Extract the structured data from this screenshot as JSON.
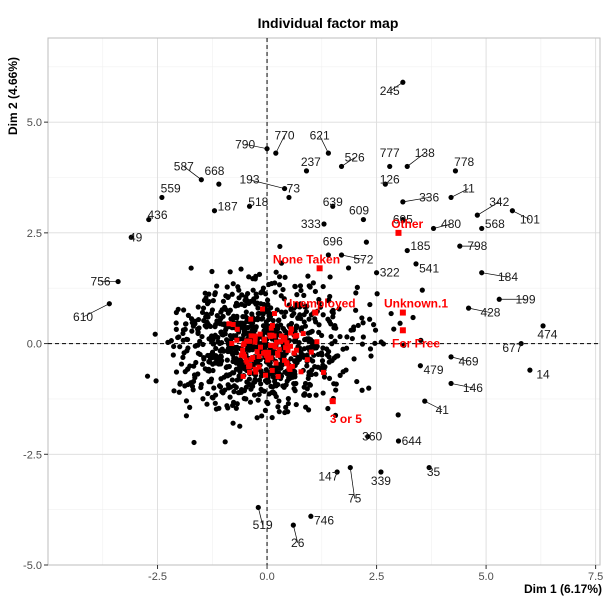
{
  "chart_data": {
    "type": "scatter",
    "title": "Individual factor map",
    "xlabel": "Dim 1 (6.17%)",
    "ylabel": "Dim 2 (4.66%)",
    "xlim": [
      -5.0,
      7.6
    ],
    "ylim": [
      -5.0,
      6.9
    ],
    "xticks": [
      -2.5,
      0.0,
      2.5,
      5.0,
      7.5
    ],
    "xtick_labels": [
      "-2.5",
      "0.0",
      "2.5",
      "5.0",
      "7.5"
    ],
    "yticks": [
      -5.0,
      -2.5,
      0.0,
      2.5,
      5.0
    ],
    "ytick_labels": [
      "-5.0",
      "-2.5",
      "0.0",
      "2.5",
      "5.0"
    ],
    "grid": true,
    "reference_lines": {
      "x": 0,
      "y": 0,
      "style": "dashed"
    },
    "colors": {
      "individuals": "#000000",
      "categories": "#ff0000",
      "grid": "#dcdcdc"
    },
    "labeled_individuals": [
      {
        "label": "245",
        "x": 3.1,
        "y": 5.9,
        "lx": 2.8,
        "ly": 5.7
      },
      {
        "label": "790",
        "x": 0.0,
        "y": 4.4,
        "lx": -0.5,
        "ly": 4.5
      },
      {
        "label": "770",
        "x": 0.2,
        "y": 4.3,
        "lx": 0.4,
        "ly": 4.7
      },
      {
        "label": "621",
        "x": 1.4,
        "y": 4.3,
        "lx": 1.2,
        "ly": 4.7
      },
      {
        "label": "526",
        "x": 1.7,
        "y": 4.0,
        "lx": 2.0,
        "ly": 4.2
      },
      {
        "label": "777",
        "x": 2.8,
        "y": 4.0,
        "lx": 2.8,
        "ly": 4.3
      },
      {
        "label": "138",
        "x": 3.2,
        "y": 4.0,
        "lx": 3.6,
        "ly": 4.3
      },
      {
        "label": "778",
        "x": 4.3,
        "y": 3.9,
        "lx": 4.5,
        "ly": 4.1
      },
      {
        "label": "237",
        "x": 0.9,
        "y": 3.9,
        "lx": 1.0,
        "ly": 4.1
      },
      {
        "label": "587",
        "x": -1.5,
        "y": 3.7,
        "lx": -1.9,
        "ly": 4.0
      },
      {
        "label": "668",
        "x": -1.1,
        "y": 3.6,
        "lx": -1.2,
        "ly": 3.9
      },
      {
        "label": "193",
        "x": 0.4,
        "y": 3.5,
        "lx": -0.4,
        "ly": 3.7
      },
      {
        "label": "126",
        "x": 2.7,
        "y": 3.6,
        "lx": 2.8,
        "ly": 3.7
      },
      {
        "label": "73",
        "x": 0.5,
        "y": 3.3,
        "lx": 0.6,
        "ly": 3.5
      },
      {
        "label": "559",
        "x": -2.4,
        "y": 3.3,
        "lx": -2.2,
        "ly": 3.5
      },
      {
        "label": "11",
        "x": 4.2,
        "y": 3.3,
        "lx": 4.6,
        "ly": 3.5
      },
      {
        "label": "336",
        "x": 3.1,
        "y": 3.2,
        "lx": 3.7,
        "ly": 3.3
      },
      {
        "label": "639",
        "x": 1.5,
        "y": 3.1,
        "lx": 1.5,
        "ly": 3.2
      },
      {
        "label": "518",
        "x": -0.4,
        "y": 3.1,
        "lx": -0.2,
        "ly": 3.2
      },
      {
        "label": "187",
        "x": -1.2,
        "y": 3.0,
        "lx": -0.9,
        "ly": 3.1
      },
      {
        "label": "342",
        "x": 4.8,
        "y": 2.9,
        "lx": 5.3,
        "ly": 3.2
      },
      {
        "label": "609",
        "x": 2.2,
        "y": 2.8,
        "lx": 2.1,
        "ly": 3.0
      },
      {
        "label": "436",
        "x": -2.7,
        "y": 2.8,
        "lx": -2.5,
        "ly": 2.9
      },
      {
        "label": "333",
        "x": 1.3,
        "y": 2.7,
        "lx": 1.0,
        "ly": 2.7
      },
      {
        "label": "101",
        "x": 5.6,
        "y": 3.0,
        "lx": 6.0,
        "ly": 2.8
      },
      {
        "label": "568",
        "x": 4.9,
        "y": 2.6,
        "lx": 5.2,
        "ly": 2.7
      },
      {
        "label": "695",
        "x": 3.1,
        "y": 2.8,
        "lx": 3.1,
        "ly": 2.8
      },
      {
        "label": "480",
        "x": 3.8,
        "y": 2.6,
        "lx": 4.2,
        "ly": 2.7
      },
      {
        "label": "49",
        "x": -3.1,
        "y": 2.4,
        "lx": -3.0,
        "ly": 2.4
      },
      {
        "label": "696",
        "x": 1.4,
        "y": 2.0,
        "lx": 1.5,
        "ly": 2.3
      },
      {
        "label": "185",
        "x": 3.2,
        "y": 2.1,
        "lx": 3.5,
        "ly": 2.2
      },
      {
        "label": "798",
        "x": 4.4,
        "y": 2.2,
        "lx": 4.8,
        "ly": 2.2
      },
      {
        "label": "572",
        "x": 1.7,
        "y": 2.0,
        "lx": 2.2,
        "ly": 1.9
      },
      {
        "label": "541",
        "x": 3.4,
        "y": 1.8,
        "lx": 3.7,
        "ly": 1.7
      },
      {
        "label": "322",
        "x": 2.5,
        "y": 1.6,
        "lx": 2.8,
        "ly": 1.6
      },
      {
        "label": "184",
        "x": 4.9,
        "y": 1.6,
        "lx": 5.5,
        "ly": 1.5
      },
      {
        "label": "756",
        "x": -3.4,
        "y": 1.4,
        "lx": -3.8,
        "ly": 1.4
      },
      {
        "label": "199",
        "x": 5.3,
        "y": 1.0,
        "lx": 5.9,
        "ly": 1.0
      },
      {
        "label": "428",
        "x": 4.6,
        "y": 0.8,
        "lx": 5.1,
        "ly": 0.7
      },
      {
        "label": "610",
        "x": -3.6,
        "y": 0.9,
        "lx": -4.2,
        "ly": 0.6
      },
      {
        "label": "474",
        "x": 6.3,
        "y": 0.4,
        "lx": 6.4,
        "ly": 0.2
      },
      {
        "label": "677",
        "x": 5.8,
        "y": 0.0,
        "lx": 5.6,
        "ly": -0.1
      },
      {
        "label": "469",
        "x": 4.2,
        "y": -0.3,
        "lx": 4.6,
        "ly": -0.4
      },
      {
        "label": "479",
        "x": 3.5,
        "y": -0.5,
        "lx": 3.8,
        "ly": -0.6
      },
      {
        "label": "14",
        "x": 6.0,
        "y": -0.6,
        "lx": 6.3,
        "ly": -0.7
      },
      {
        "label": "146",
        "x": 4.2,
        "y": -0.9,
        "lx": 4.7,
        "ly": -1.0
      },
      {
        "label": "41",
        "x": 3.6,
        "y": -1.3,
        "lx": 4.0,
        "ly": -1.5
      },
      {
        "label": "360",
        "x": 2.3,
        "y": -2.1,
        "lx": 2.4,
        "ly": -2.1
      },
      {
        "label": "644",
        "x": 3.0,
        "y": -2.2,
        "lx": 3.3,
        "ly": -2.2
      },
      {
        "label": "35",
        "x": 3.7,
        "y": -2.8,
        "lx": 3.8,
        "ly": -2.9
      },
      {
        "label": "339",
        "x": 2.6,
        "y": -2.9,
        "lx": 2.6,
        "ly": -3.1
      },
      {
        "label": "147",
        "x": 1.6,
        "y": -2.9,
        "lx": 1.4,
        "ly": -3.0
      },
      {
        "label": "75",
        "x": 1.9,
        "y": -2.8,
        "lx": 2.0,
        "ly": -3.5
      },
      {
        "label": "746",
        "x": 1.0,
        "y": -3.9,
        "lx": 1.3,
        "ly": -4.0
      },
      {
        "label": "519",
        "x": -0.2,
        "y": -3.7,
        "lx": -0.1,
        "ly": -4.1
      },
      {
        "label": "26",
        "x": 0.6,
        "y": -4.1,
        "lx": 0.7,
        "ly": -4.5
      }
    ],
    "categories": [
      {
        "label": "Other",
        "x": 3.0,
        "y": 2.5,
        "lx": 3.2,
        "ly": 2.7
      },
      {
        "label": "None Taken",
        "x": 1.2,
        "y": 1.7,
        "lx": 0.9,
        "ly": 1.9
      },
      {
        "label": "Unemployed",
        "x": 1.1,
        "y": 0.7,
        "lx": 1.2,
        "ly": 0.9
      },
      {
        "label": "Unknown.1",
        "x": 3.1,
        "y": 0.7,
        "lx": 3.4,
        "ly": 0.9
      },
      {
        "label": "For Free",
        "x": 3.1,
        "y": 0.3,
        "lx": 3.4,
        "ly": 0.0
      },
      {
        "label": "3 or 5",
        "x": 1.5,
        "y": -1.3,
        "lx": 1.8,
        "ly": -1.7
      }
    ]
  }
}
